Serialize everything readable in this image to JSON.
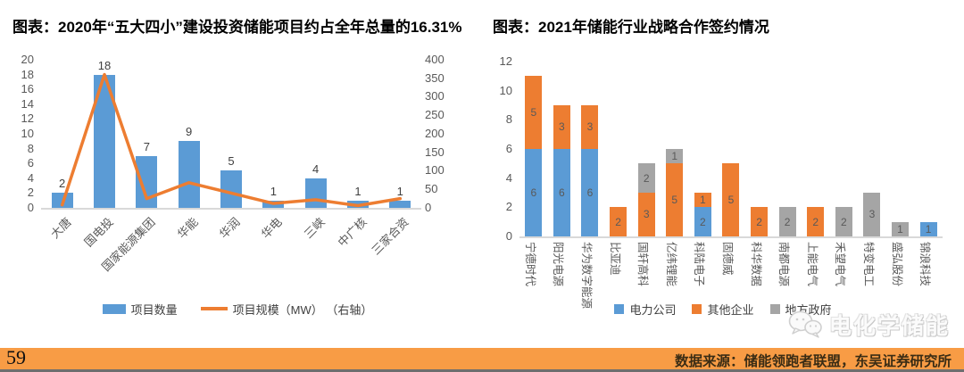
{
  "footer": {
    "page_number": "59",
    "source": "数据来源：储能领跑者联盟，东吴证券研究所"
  },
  "watermark": {
    "text": "电化学储能",
    "icon": "wechat-icon"
  },
  "colors": {
    "bar_blue": "#5B9BD5",
    "line_orange": "#ED7D31",
    "gray": "#A5A5A5",
    "footer_orange": "#F89C45",
    "axis_text": "#595959"
  },
  "chart_data": [
    {
      "type": "combo_bar_line",
      "title": "图表：2020年“五大四小”建设投资储能项目约占全年总量的16.31%",
      "categories": [
        "大唐",
        "国电投",
        "国家能源集团",
        "华能",
        "华润",
        "华电",
        "三峡",
        "中广核",
        "三家合资"
      ],
      "series": [
        {
          "name": "项目数量",
          "type": "bar",
          "axis": "left",
          "color": "#5B9BD5",
          "values": [
            2,
            18,
            7,
            9,
            5,
            1,
            4,
            1,
            1
          ],
          "data_labels": true
        },
        {
          "name": "项目规模（MW） （右轴）",
          "type": "line",
          "axis": "right",
          "color": "#ED7D31",
          "values": [
            8,
            360,
            25,
            68,
            40,
            12,
            22,
            6,
            25
          ],
          "note": "line values estimated from gridlines, not labeled"
        }
      ],
      "left_axis": {
        "min": 0,
        "max": 20,
        "step": 2
      },
      "right_axis": {
        "min": 0,
        "max": 400,
        "step": 50
      },
      "grid": false,
      "legend_position": "bottom"
    },
    {
      "type": "stacked_bar",
      "title": "图表：2021年储能行业战略合作签约情况",
      "categories": [
        "宁德时代",
        "阳光电源",
        "华为数字能源",
        "比亚迪",
        "国轩高科",
        "亿纬锂能",
        "科陆电子",
        "固德威",
        "科华数据",
        "南都电源",
        "上能电气",
        "禾望电气",
        "特变电工",
        "盛弘股份",
        "锦浪科技"
      ],
      "series": [
        {
          "name": "电力公司",
          "color": "#5B9BD5",
          "values": [
            6,
            6,
            6,
            0,
            0,
            0,
            2,
            0,
            0,
            0,
            0,
            0,
            0,
            0,
            1
          ]
        },
        {
          "name": "其他企业",
          "color": "#ED7D31",
          "values": [
            5,
            3,
            3,
            2,
            3,
            5,
            1,
            5,
            2,
            0,
            2,
            0,
            0,
            0,
            0
          ]
        },
        {
          "name": "地方政府",
          "color": "#A5A5A5",
          "values": [
            0,
            0,
            0,
            0,
            2,
            1,
            0,
            0,
            0,
            2,
            0,
            2,
            3,
            1,
            0
          ]
        }
      ],
      "y_axis": {
        "min": 0,
        "max": 12,
        "step": 2
      },
      "grid": false,
      "segment_labels": true,
      "legend_position": "bottom"
    }
  ]
}
